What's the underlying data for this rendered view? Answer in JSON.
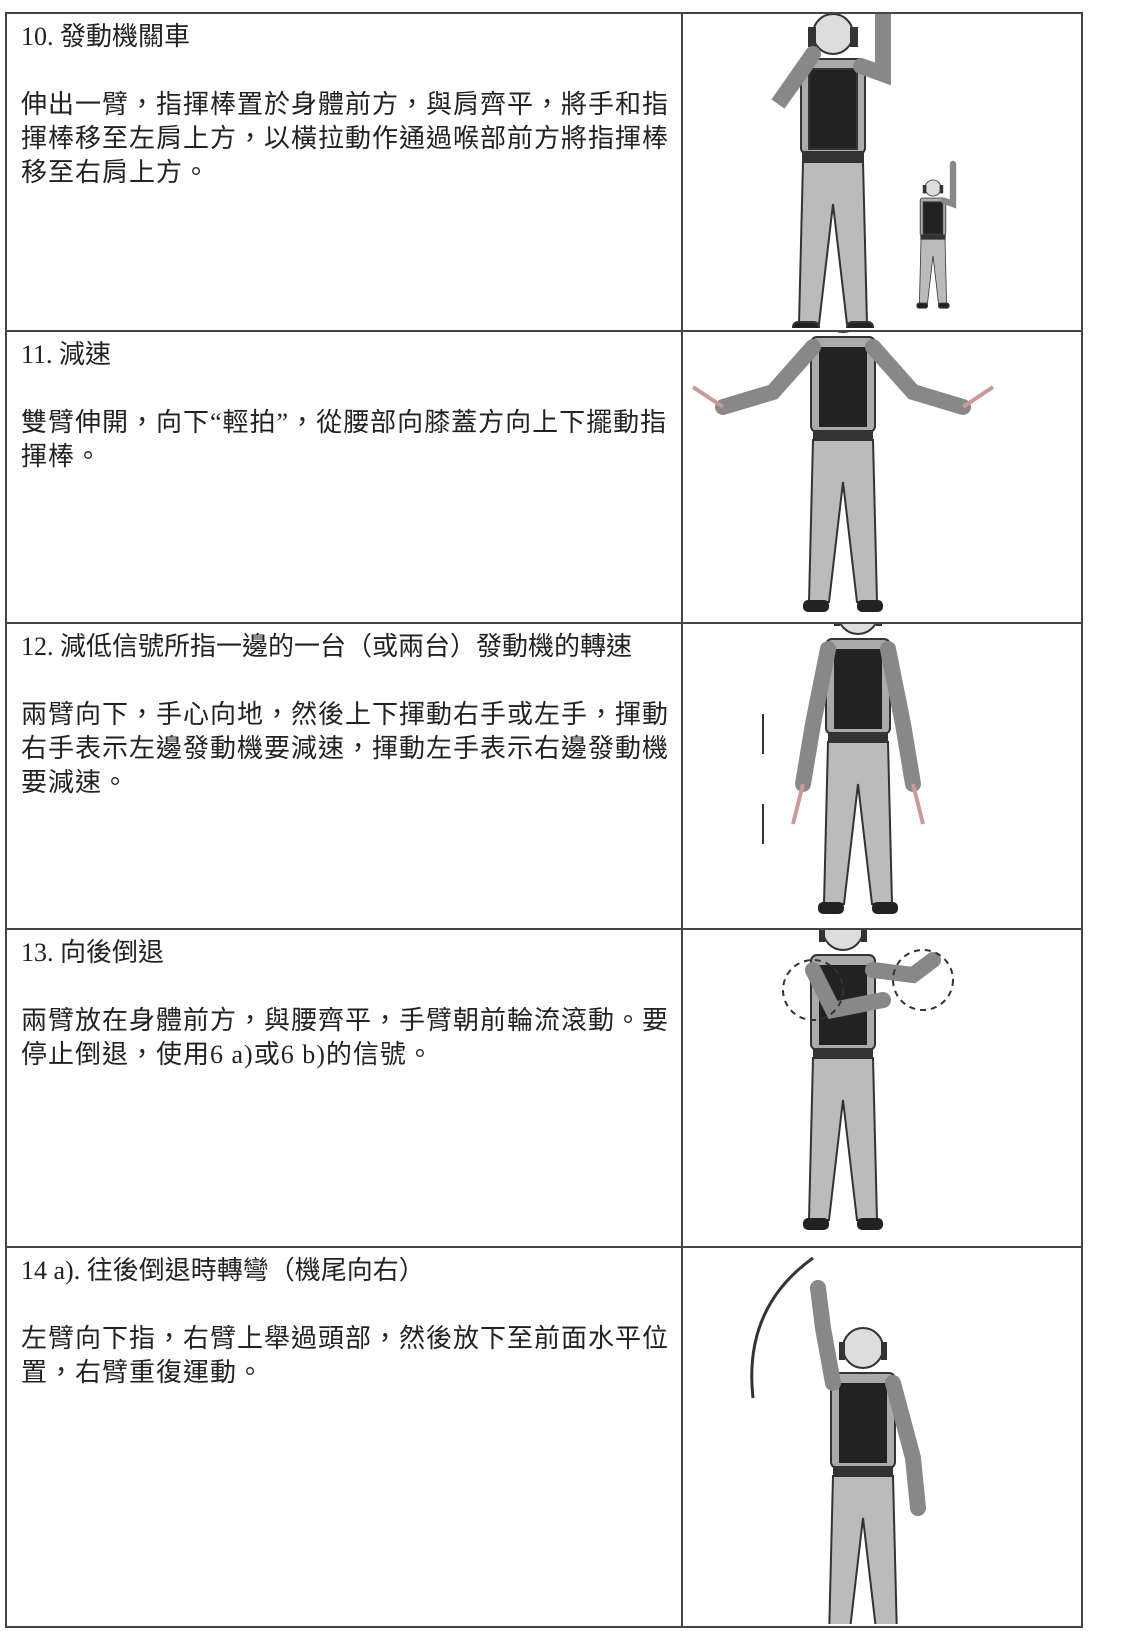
{
  "rows": [
    {
      "title": "10. 發動機關車",
      "description": "伸出一臂，指揮棒置於身體前方，與肩齊平，將手和指揮棒移至左肩上方，以橫拉動作通過喉部前方將指揮棒移至右肩上方。"
    },
    {
      "title": "11. 減速",
      "description": "雙臂伸開，向下“輕拍”，從腰部向膝蓋方向上下擺動指揮棒。"
    },
    {
      "title": "12. 減低信號所指一邊的一台（或兩台）發動機的轉速",
      "description": "兩臂向下，手心向地，然後上下揮動右手或左手，揮動右手表示左邊發動機要減速，揮動左手表示右邊發動機要減速。"
    },
    {
      "title": "13. 向後倒退",
      "description": "兩臂放在身體前方，與腰齊平，手臂朝前輪流滾動。要停止倒退，使用6 a)或6 b)的信號。"
    },
    {
      "title": "14 a). 往後倒退時轉彎（機尾向右）",
      "description": "左臂向下指，右臂上舉過頭部，然後放下至前面水平位置，右臂重復運動。"
    }
  ]
}
